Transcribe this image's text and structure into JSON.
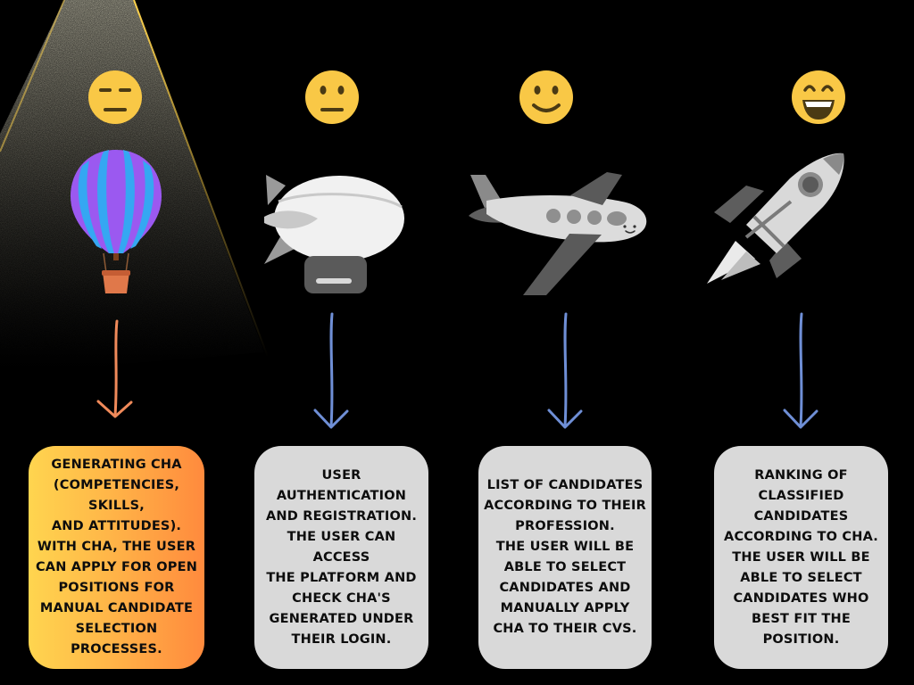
{
  "steps": [
    {
      "face": "expressionless-face",
      "vehicle": "hot-air-balloon",
      "text": "GENERATING CHA\n(COMPETENCIES, SKILLS,\nAND ATTITUDES).\nWITH CHA, THE USER\nCAN APPLY FOR OPEN\nPOSITIONS FOR\nMANUAL CANDIDATE\nSELECTION PROCESSES.",
      "box_color": "#ff9a42"
    },
    {
      "face": "neutral-face",
      "vehicle": "blimp",
      "text": "USER\nAUTHENTICATION\nAND REGISTRATION.\nTHE USER CAN ACCESS\nTHE PLATFORM AND\nCHECK CHA'S\nGENERATED UNDER\nTHEIR LOGIN.",
      "box_color": "#d9d9d9"
    },
    {
      "face": "slightly-smiling-face",
      "vehicle": "airplane",
      "text": "LIST OF CANDIDATES\nACCORDING TO THEIR\nPROFESSION.\nTHE USER WILL BE\nABLE TO SELECT\nCANDIDATES AND\nMANUALLY APPLY\nCHA TO THEIR CVS.",
      "box_color": "#d9d9d9"
    },
    {
      "face": "grinning-face",
      "vehicle": "rocket",
      "text": "RANKING OF\nCLASSIFIED\nCANDIDATES\nACCORDING TO CHA.\nTHE USER WILL BE\nABLE TO SELECT\nCANDIDATES WHO\nBEST FIT THE\nPOSITION.",
      "box_color": "#d9d9d9"
    }
  ],
  "colors": {
    "background": "#000000",
    "face": "#f9c846",
    "arrow_first": "#f08a5a",
    "arrow_other": "#6f8fd6",
    "spotlight": "#fff6c8"
  }
}
